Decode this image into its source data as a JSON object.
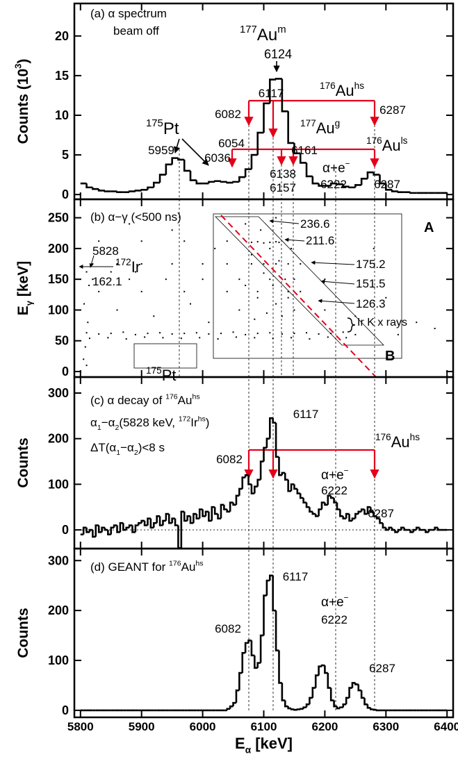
{
  "chart_data": [
    {
      "type": "histogram",
      "ylabel": [
        "Counts (10",
        {
          "sup": "3"
        },
        ")"
      ],
      "xlim": [
        5790,
        6410
      ],
      "ylim": [
        -0.6,
        24.1
      ],
      "yticks": [
        0,
        5,
        10,
        15,
        20
      ],
      "color": "#000000",
      "bins": [
        5800,
        5810,
        5820,
        5830,
        5840,
        5850,
        5860,
        5870,
        5880,
        5890,
        5900,
        5910,
        5920,
        5930,
        5940,
        5950,
        5960,
        5970,
        5980,
        5990,
        6000,
        6010,
        6020,
        6030,
        6040,
        6050,
        6060,
        6070,
        6080,
        6090,
        6100,
        6110,
        6120,
        6130,
        6140,
        6150,
        6160,
        6170,
        6180,
        6190,
        6200,
        6210,
        6220,
        6230,
        6240,
        6250,
        6260,
        6270,
        6280,
        6290,
        6300,
        6310,
        6320,
        6330,
        6340,
        6350,
        6360,
        6370,
        6380,
        6390,
        6400
      ],
      "values": [
        1.4,
        0.9,
        0.7,
        0.5,
        0.4,
        0.4,
        0.3,
        0.3,
        0.4,
        0.5,
        0.6,
        0.9,
        1.5,
        2.5,
        3.8,
        4.6,
        4.4,
        3.0,
        1.8,
        1.4,
        1.4,
        1.6,
        1.7,
        1.6,
        1.5,
        1.6,
        2.2,
        3.2,
        5.0,
        7.8,
        11.5,
        14.5,
        14.6,
        10.5,
        6.5,
        5.2,
        4.0,
        2.3,
        1.4,
        1.1,
        1.1,
        1.4,
        1.3,
        1.0,
        0.9,
        1.2,
        2.0,
        2.8,
        2.5,
        1.4,
        0.6,
        0.4,
        0.3,
        0.3,
        0.2,
        0.2,
        0.2,
        0.2,
        0.2,
        0.2
      ],
      "annotations": [
        "(a) α  spectrum",
        "beam off",
        [
          {
            "sup": "177"
          },
          "Au",
          {
            "sup": "m"
          }
        ],
        "6124",
        [
          {
            "sup": "176"
          },
          "Au",
          {
            "sup": "hs"
          }
        ],
        "6117",
        "6082",
        "6287",
        [
          {
            "sup": "175"
          },
          "Pt"
        ],
        [
          {
            "sup": "177"
          },
          "Au",
          {
            "sup": "g"
          }
        ],
        "5959",
        "6036",
        "6054",
        "6161",
        "6138",
        "6157",
        [
          "α+e",
          {
            "sup": "−"
          }
        ],
        "6222",
        [
          {
            "sup": "176"
          },
          "Au",
          {
            "sup": "ls"
          }
        ],
        "6287"
      ]
    },
    {
      "type": "scatter",
      "ylabel": [
        "E",
        {
          "sub": "γ"
        },
        " [keV]"
      ],
      "xlim": [
        5790,
        6410
      ],
      "ylim": [
        -9,
        280
      ],
      "yticks": [
        0,
        50,
        100,
        150,
        200,
        250
      ],
      "color": "#000000",
      "x": [
        5810,
        5830,
        5850,
        5870,
        5890,
        5910,
        5930,
        5950,
        5970,
        5990,
        6010,
        6030,
        6050,
        6070,
        6090,
        6110,
        6130,
        6150,
        6170,
        6190,
        6210,
        6230,
        6250,
        5815,
        5845,
        5875,
        5905,
        5935,
        5965,
        5995,
        6025,
        6055,
        6085,
        6115,
        6145,
        6175,
        6205,
        6235,
        6080,
        6090,
        6100,
        6110,
        6120,
        6125,
        5830,
        5900,
        5970,
        6040,
        5820,
        5860,
        5900,
        5950,
        6000,
        6040,
        6080,
        6100,
        6120,
        6140,
        6160,
        5810,
        5850,
        5890,
        5820,
        5880,
        5940,
        6000,
        6060,
        6110,
        6150,
        6200,
        5830,
        5900,
        5970,
        6040,
        6090,
        6140,
        6060,
        6070,
        6080,
        6090,
        6095,
        6100,
        6105,
        6110,
        6115,
        6120,
        6125,
        6130,
        6135,
        6140,
        6150,
        6160,
        6070,
        6085,
        6145,
        6120,
        5860,
        5920,
        5980,
        6020,
        5950,
        6200,
        6250,
        6300,
        6350,
        6280,
        5880,
        6010,
        6320,
        6380,
        5805,
        5808,
        5812,
        5806,
        5814,
        5810
      ],
      "values": [
        63,
        61,
        62,
        64,
        60,
        62,
        63,
        61,
        62,
        63,
        61,
        62,
        64,
        60,
        62,
        63,
        61,
        62,
        63,
        61,
        62,
        64,
        60,
        54,
        55,
        53,
        56,
        55,
        54,
        55,
        53,
        56,
        55,
        54,
        55,
        53,
        56,
        55,
        210,
        211,
        209,
        210,
        211,
        210,
        212,
        212,
        212,
        212,
        175,
        175,
        175,
        175,
        175,
        175,
        175,
        175,
        175,
        175,
        175,
        162,
        162,
        162,
        150,
        150,
        150,
        150,
        150,
        150,
        150,
        150,
        130,
        130,
        130,
        130,
        130,
        130,
        100,
        140,
        190,
        120,
        230,
        160,
        95,
        200,
        140,
        110,
        180,
        90,
        150,
        120,
        100,
        130,
        240,
        85,
        200,
        250,
        100,
        90,
        110,
        200,
        230,
        100,
        90,
        120,
        80,
        200,
        240,
        80,
        60,
        70,
        20,
        40,
        80,
        110,
        140,
        10
      ],
      "annotations": [
        "(b) α−γ (<500 ns)",
        "236.6",
        "211.6",
        "175.2",
        "151.5",
        "126.3",
        "5828",
        [
          {
            "sup": "172"
          },
          "Ir"
        ],
        "162.1",
        "Ir K  x rays",
        "A",
        "B",
        [
          {
            "sup": "175"
          },
          "Pt"
        ]
      ]
    },
    {
      "type": "histogram",
      "ylabel": "Counts",
      "xlim": [
        5790,
        6410
      ],
      "ylim": [
        -41,
        335
      ],
      "yticks": [
        0,
        100,
        200,
        300
      ],
      "color": "#000000",
      "bins": [
        5800,
        5805,
        5810,
        5815,
        5820,
        5825,
        5830,
        5835,
        5840,
        5845,
        5850,
        5855,
        5860,
        5865,
        5870,
        5875,
        5880,
        5885,
        5890,
        5895,
        5900,
        5905,
        5910,
        5915,
        5920,
        5925,
        5930,
        5935,
        5940,
        5945,
        5950,
        5955,
        5960,
        5965,
        5970,
        5975,
        5980,
        5985,
        5990,
        5995,
        6000,
        6005,
        6010,
        6015,
        6020,
        6025,
        6030,
        6035,
        6040,
        6045,
        6050,
        6055,
        6060,
        6065,
        6070,
        6075,
        6080,
        6085,
        6090,
        6095,
        6100,
        6105,
        6110,
        6115,
        6120,
        6125,
        6130,
        6135,
        6140,
        6145,
        6150,
        6155,
        6160,
        6165,
        6170,
        6175,
        6180,
        6185,
        6190,
        6195,
        6200,
        6205,
        6210,
        6215,
        6220,
        6225,
        6230,
        6235,
        6240,
        6245,
        6250,
        6255,
        6260,
        6265,
        6270,
        6275,
        6280,
        6285,
        6290,
        6295,
        6300,
        6305,
        6310,
        6315,
        6320,
        6325,
        6330,
        6335,
        6340,
        6345,
        6350,
        6355,
        6360,
        6365,
        6370,
        6375,
        6380,
        6385,
        6390,
        6395,
        6400
      ],
      "values": [
        -10,
        5,
        -5,
        0,
        -15,
        10,
        -5,
        5,
        0,
        -10,
        5,
        10,
        -5,
        15,
        0,
        5,
        10,
        -5,
        10,
        15,
        20,
        10,
        25,
        5,
        15,
        30,
        10,
        20,
        35,
        15,
        25,
        10,
        -40,
        40,
        20,
        30,
        15,
        35,
        25,
        45,
        30,
        40,
        20,
        50,
        35,
        25,
        55,
        45,
        40,
        60,
        55,
        75,
        90,
        115,
        120,
        100,
        80,
        95,
        110,
        150,
        180,
        200,
        245,
        235,
        160,
        120,
        125,
        110,
        85,
        100,
        90,
        80,
        70,
        60,
        50,
        40,
        35,
        30,
        45,
        60,
        55,
        75,
        70,
        60,
        45,
        30,
        25,
        35,
        20,
        25,
        35,
        40,
        45,
        35,
        50,
        40,
        30,
        25,
        15,
        5,
        0,
        5,
        0,
        -5,
        0,
        5,
        0,
        0,
        -5,
        0,
        5,
        0,
        0,
        -5,
        0,
        0,
        5,
        0,
        0,
        0
      ],
      "annotations": [
        [
          "(c) α decay of ",
          {
            "sup": "176"
          },
          "Au",
          {
            "sup": "hs"
          }
        ],
        [
          "α",
          {
            "sub": "1"
          },
          "−α",
          {
            "sub": "2"
          },
          "(5828 keV, ",
          {
            "sup": "172"
          },
          "Ir",
          {
            "sup": "hs"
          },
          ")"
        ],
        [
          "ΔT(α",
          {
            "sub": "1"
          },
          "−α",
          {
            "sub": "2"
          },
          ")<8 s"
        ],
        "6117",
        "6082",
        [
          {
            "sup": "176"
          },
          "Au",
          {
            "sup": "hs"
          }
        ],
        [
          "α+e",
          {
            "sup": "−"
          }
        ],
        "6222",
        "6287"
      ]
    },
    {
      "type": "histogram",
      "ylabel": "Counts",
      "xlabel": [
        "E",
        {
          "sub": "α"
        },
        " [keV]"
      ],
      "xlim": [
        5790,
        6410
      ],
      "xticks": [
        5800,
        5900,
        6000,
        6100,
        6200,
        6300,
        6400
      ],
      "ylim": [
        -14,
        324
      ],
      "yticks": [
        0,
        100,
        200,
        300
      ],
      "color": "#000000",
      "bins": [
        5800,
        5805,
        5810,
        5815,
        5820,
        5825,
        5830,
        5835,
        5840,
        5845,
        5850,
        5855,
        5860,
        5865,
        5870,
        5875,
        5880,
        5885,
        5890,
        5895,
        5900,
        5905,
        5910,
        5915,
        5920,
        5925,
        5930,
        5935,
        5940,
        5945,
        5950,
        5955,
        5960,
        5965,
        5970,
        5975,
        5980,
        5985,
        5990,
        5995,
        6000,
        6005,
        6010,
        6015,
        6020,
        6025,
        6030,
        6035,
        6040,
        6045,
        6050,
        6055,
        6060,
        6065,
        6070,
        6075,
        6080,
        6085,
        6090,
        6095,
        6100,
        6105,
        6110,
        6115,
        6120,
        6125,
        6130,
        6135,
        6140,
        6145,
        6150,
        6155,
        6160,
        6165,
        6170,
        6175,
        6180,
        6185,
        6190,
        6195,
        6200,
        6205,
        6210,
        6215,
        6220,
        6225,
        6230,
        6235,
        6240,
        6245,
        6250,
        6255,
        6260,
        6265,
        6270,
        6275,
        6280,
        6285,
        6290,
        6295,
        6300,
        6305,
        6310,
        6315,
        6320,
        6325,
        6330,
        6335,
        6340,
        6345,
        6350,
        6355,
        6360,
        6365,
        6370,
        6375,
        6380,
        6385,
        6390,
        6395,
        6400
      ],
      "values": [
        0,
        0,
        0,
        0,
        0,
        0,
        0,
        0,
        0,
        0,
        0,
        0,
        0,
        0,
        0,
        0,
        0,
        0,
        0,
        0,
        0,
        0,
        0,
        0,
        0,
        0,
        0,
        0,
        0,
        0,
        0,
        0,
        0,
        0,
        0,
        0,
        0,
        0,
        0,
        0,
        0,
        0,
        0,
        0,
        0,
        0,
        0,
        0,
        3,
        8,
        15,
        40,
        75,
        115,
        135,
        140,
        110,
        85,
        95,
        150,
        230,
        260,
        270,
        200,
        120,
        55,
        20,
        8,
        4,
        2,
        1,
        2,
        3,
        6,
        12,
        25,
        45,
        70,
        88,
        90,
        75,
        45,
        20,
        8,
        4,
        6,
        12,
        25,
        45,
        55,
        52,
        40,
        25,
        12,
        5,
        2,
        1,
        0,
        0,
        0,
        0,
        0,
        0,
        0,
        0,
        0,
        0,
        0,
        0,
        0,
        0,
        0,
        0,
        0,
        0,
        0,
        0,
        0,
        0,
        0
      ],
      "annotations": [
        [
          "(d) GEANT for ",
          {
            "sup": "176"
          },
          "Au",
          {
            "sup": "hs"
          }
        ],
        "6117",
        "6082",
        [
          "α+e",
          {
            "sup": "−"
          }
        ],
        "6222",
        "6287"
      ]
    }
  ]
}
